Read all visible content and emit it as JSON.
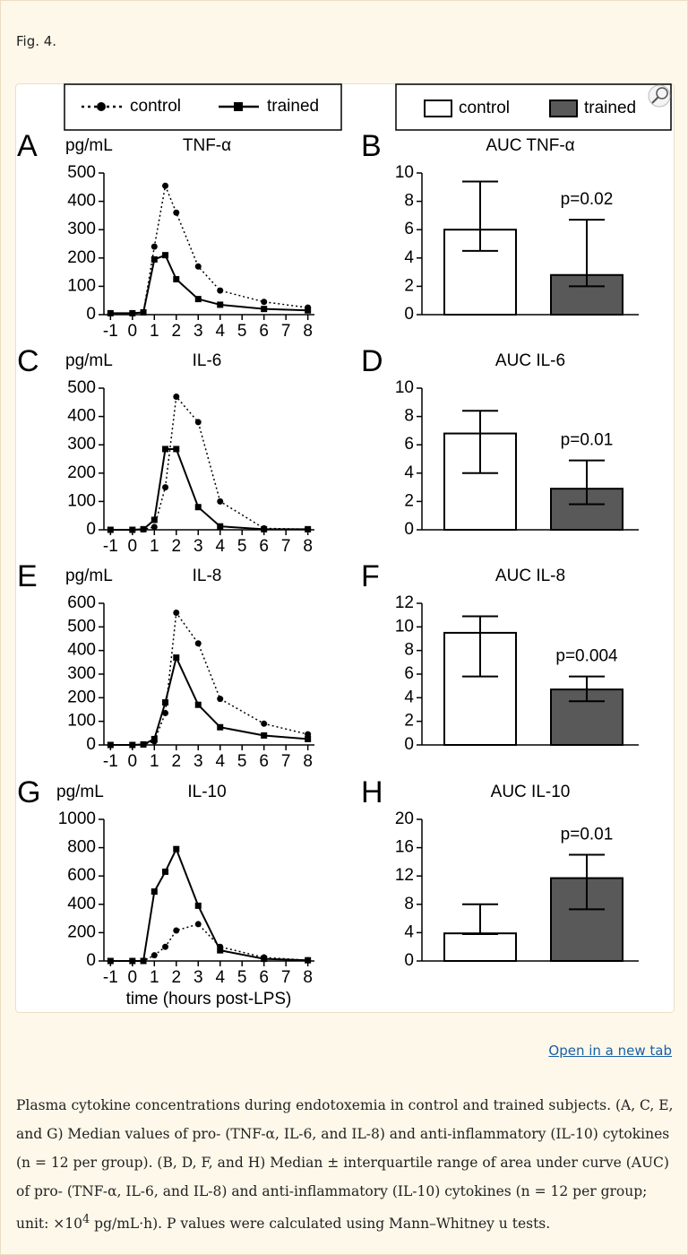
{
  "header": {
    "fig_label": "Fig. 4."
  },
  "legend": {
    "line": [
      {
        "name": "control",
        "style": "dotted",
        "marker": "circle"
      },
      {
        "name": "trained",
        "style": "solid",
        "marker": "square"
      }
    ],
    "bar": [
      {
        "name": "control",
        "color": "#ffffff"
      },
      {
        "name": "trained",
        "color": "#595959"
      }
    ]
  },
  "chart_data": [
    {
      "type": "line",
      "panel": "A",
      "title": "TNF-α",
      "y_label": "pg/mL",
      "x": [
        -1,
        0,
        0.5,
        1,
        1.5,
        2,
        3,
        4,
        6,
        8
      ],
      "series": [
        {
          "style": "dotted",
          "marker": "circle",
          "color": "#000000",
          "values": [
            5,
            5,
            8,
            240,
            455,
            360,
            170,
            85,
            45,
            25
          ]
        },
        {
          "style": "solid",
          "marker": "square",
          "color": "#000000",
          "values": [
            5,
            5,
            8,
            195,
            210,
            125,
            55,
            35,
            20,
            15
          ]
        }
      ],
      "xlim": [
        -1.3,
        8.3
      ],
      "xticks": [
        -1,
        0,
        1,
        2,
        3,
        4,
        5,
        6,
        7,
        8
      ],
      "ylim": [
        0,
        500
      ],
      "yticks": [
        0,
        100,
        200,
        300,
        400,
        500
      ]
    },
    {
      "type": "bar",
      "panel": "B",
      "title": "AUC TNF-α",
      "values": [
        6.0,
        2.8
      ],
      "low": [
        4.5,
        2.0
      ],
      "high": [
        9.4,
        6.7
      ],
      "colors": [
        "#ffffff",
        "#595959"
      ],
      "annotation": "p=0.02",
      "ylim": [
        0,
        10
      ],
      "yticks": [
        0,
        2,
        4,
        6,
        8,
        10
      ]
    },
    {
      "type": "line",
      "panel": "C",
      "title": "IL-6",
      "y_label": "pg/mL",
      "x": [
        -1,
        0,
        0.5,
        1,
        1.5,
        2,
        3,
        4,
        6,
        8
      ],
      "series": [
        {
          "style": "dotted",
          "marker": "circle",
          "color": "#000000",
          "values": [
            0,
            0,
            2,
            10,
            150,
            470,
            380,
            100,
            5,
            2
          ]
        },
        {
          "style": "solid",
          "marker": "square",
          "color": "#000000",
          "values": [
            0,
            0,
            2,
            35,
            285,
            285,
            80,
            12,
            2,
            2
          ]
        }
      ],
      "xlim": [
        -1.3,
        8.3
      ],
      "xticks": [
        -1,
        0,
        1,
        2,
        3,
        4,
        5,
        6,
        7,
        8
      ],
      "ylim": [
        0,
        500
      ],
      "yticks": [
        0,
        100,
        200,
        300,
        400,
        500
      ]
    },
    {
      "type": "bar",
      "panel": "D",
      "title": "AUC IL-6",
      "values": [
        6.8,
        2.9
      ],
      "low": [
        4.0,
        1.8
      ],
      "high": [
        8.4,
        4.9
      ],
      "colors": [
        "#ffffff",
        "#595959"
      ],
      "annotation": "p=0.01",
      "ylim": [
        0,
        10
      ],
      "yticks": [
        0,
        2,
        4,
        6,
        8,
        10
      ]
    },
    {
      "type": "line",
      "panel": "E",
      "title": "IL-8",
      "y_label": "pg/mL",
      "x": [
        -1,
        0,
        0.5,
        1,
        1.5,
        2,
        3,
        4,
        6,
        8
      ],
      "series": [
        {
          "style": "dotted",
          "marker": "circle",
          "color": "#000000",
          "values": [
            0,
            0,
            2,
            15,
            135,
            560,
            430,
            195,
            90,
            45
          ]
        },
        {
          "style": "solid",
          "marker": "square",
          "color": "#000000",
          "values": [
            0,
            0,
            2,
            25,
            180,
            370,
            170,
            75,
            40,
            25
          ]
        }
      ],
      "xlim": [
        -1.3,
        8.3
      ],
      "xticks": [
        -1,
        0,
        1,
        2,
        3,
        4,
        5,
        6,
        7,
        8
      ],
      "ylim": [
        0,
        600
      ],
      "yticks": [
        0,
        100,
        200,
        300,
        400,
        500,
        600
      ]
    },
    {
      "type": "bar",
      "panel": "F",
      "title": "AUC IL-8",
      "values": [
        9.5,
        4.7
      ],
      "low": [
        5.8,
        3.7
      ],
      "high": [
        10.9,
        5.8
      ],
      "colors": [
        "#ffffff",
        "#595959"
      ],
      "annotation": "p=0.004",
      "ylim": [
        0,
        12
      ],
      "yticks": [
        0,
        2,
        4,
        6,
        8,
        10,
        12
      ]
    },
    {
      "type": "line",
      "panel": "G",
      "title": "IL-10",
      "y_label": "pg/mL",
      "x_label": "time (hours post-LPS)",
      "x": [
        -1,
        0,
        0.5,
        1,
        1.5,
        2,
        3,
        4,
        6,
        8
      ],
      "series": [
        {
          "style": "dotted",
          "marker": "circle",
          "color": "#000000",
          "values": [
            0,
            0,
            0,
            40,
            100,
            215,
            260,
            100,
            25,
            5
          ]
        },
        {
          "style": "solid",
          "marker": "square",
          "color": "#000000",
          "values": [
            0,
            0,
            0,
            490,
            630,
            790,
            390,
            75,
            15,
            5
          ]
        }
      ],
      "xlim": [
        -1.3,
        8.3
      ],
      "xticks": [
        -1,
        0,
        1,
        2,
        3,
        4,
        5,
        6,
        7,
        8
      ],
      "ylim": [
        0,
        1000
      ],
      "yticks": [
        0,
        200,
        400,
        600,
        800,
        1000
      ]
    },
    {
      "type": "bar",
      "panel": "H",
      "title": "AUC IL-10",
      "values": [
        3.9,
        11.7
      ],
      "low": [
        3.8,
        7.3
      ],
      "high": [
        8.0,
        15.0
      ],
      "colors": [
        "#ffffff",
        "#595959"
      ],
      "annotation": "p=0.01",
      "ylim": [
        0,
        20
      ],
      "yticks": [
        0,
        4,
        8,
        12,
        16,
        20
      ]
    }
  ],
  "link": "Open in a new tab",
  "caption": {
    "text": "Plasma cytokine concentrations during endotoxemia in control and trained subjects. (A, C, E, and G) Median values of pro- (TNF-α, IL-6, and IL-8) and anti-inflammatory (IL-10) cytokines (n = 12 per group). (B, D, F, and H) Median ± interquartile range of area under curve (AUC) of pro- (TNF-α, IL-6, and IL-8) and anti-inflammatory (IL-10) cytokines (n = 12 per group; unit: ×10",
    "superscript": "4",
    "tail": " pg/mL·h). P values were calculated using Mann–Whitney u tests."
  }
}
